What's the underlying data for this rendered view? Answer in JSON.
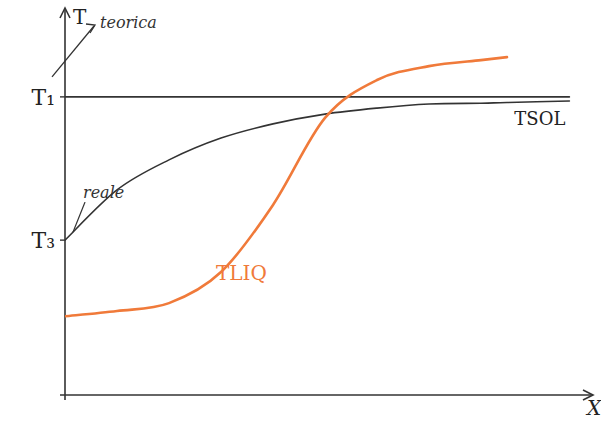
{
  "chart_data": {
    "type": "line",
    "y_label": "T",
    "x_label": "X",
    "x": [
      0,
      1,
      2,
      3,
      4,
      5,
      6,
      7,
      8,
      8.5,
      9.7
    ],
    "series": [
      {
        "name": "teorica",
        "color": "#333333",
        "line_style": "solid",
        "marker": "none",
        "values": [
          7.95,
          7.95,
          7.95,
          7.95,
          7.95,
          7.95,
          7.95,
          7.95,
          7.95,
          7.95,
          7.95
        ]
      },
      {
        "name": "reale",
        "color": "#333333",
        "line_style": "solid",
        "marker": "none",
        "values": [
          4.13,
          5.47,
          6.27,
          6.85,
          7.23,
          7.49,
          7.65,
          7.76,
          7.78,
          7.8,
          7.84
        ]
      },
      {
        "name": "TLIQ",
        "color": "#f07a3a",
        "line_style": "solid",
        "marker": "none",
        "values": [
          2.1,
          2.24,
          2.45,
          3.28,
          5.07,
          7.39,
          8.4,
          8.77,
          8.93,
          9.01,
          null
        ]
      }
    ],
    "annotations": [
      "TSOL"
    ],
    "xlim": [
      0,
      10
    ],
    "ylim": [
      0,
      10
    ],
    "yticks": [
      {
        "value": 7.95,
        "label": "T₁"
      },
      {
        "value": 4.13,
        "label": "T₃"
      }
    ],
    "tick_labels": "y",
    "grid": false
  }
}
